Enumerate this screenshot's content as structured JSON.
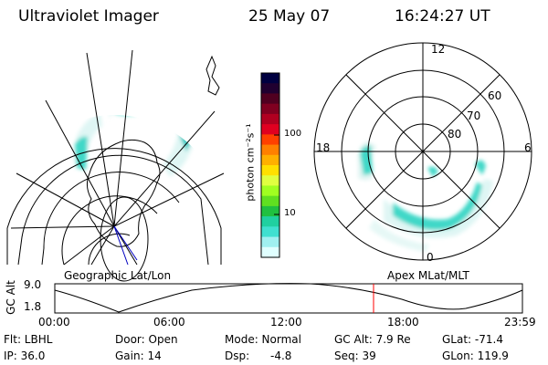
{
  "header": {
    "instrument": "Ultraviolet Imager",
    "date": "25 May 07",
    "time": "16:24:27 UT"
  },
  "colorbar": {
    "label": "photon cm⁻²s⁻¹",
    "ticks": [
      "100",
      "10"
    ],
    "colors": [
      "#000040",
      "#200030",
      "#500020",
      "#800020",
      "#b00020",
      "#e00020",
      "#ff4000",
      "#ff8000",
      "#ffb000",
      "#ffe000",
      "#e0ff40",
      "#a0ff20",
      "#60e020",
      "#20c040",
      "#20d0a0",
      "#40e0d0",
      "#a0f0f0",
      "#e0ffff"
    ]
  },
  "geo_panel": {
    "label": "Geographic Lat/Lon"
  },
  "polar_panel": {
    "label": "Apex MLat/MLT",
    "mlt_labels": [
      "12",
      "18",
      "6",
      "0"
    ],
    "lat_labels": [
      "60",
      "70",
      "80"
    ]
  },
  "altitude_plot": {
    "ylabel": "GC Alt",
    "y_ticks": [
      "9.0",
      "1.8"
    ],
    "x_ticks": [
      "00:00",
      "06:00",
      "12:00",
      "18:00",
      "23:59"
    ],
    "current_time_color": "#ff0000"
  },
  "info": {
    "filter": "Flt: LBHL",
    "ip": "IP: 36.0",
    "door": "Door: Open",
    "gain": "Gain: 14",
    "mode": "Mode: Normal",
    "dsp": "Dsp:",
    "dsp_value": "-4.8",
    "gc_alt": "GC Alt: 7.9 Re",
    "seq": "Seq: 39",
    "glat": "GLat: -71.4",
    "glon": "GLon: 119.9"
  }
}
